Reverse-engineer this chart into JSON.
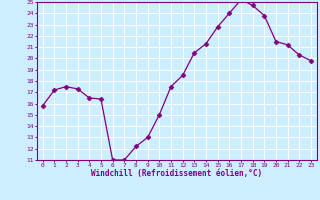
{
  "x": [
    0,
    1,
    2,
    3,
    4,
    5,
    6,
    7,
    8,
    9,
    10,
    11,
    12,
    13,
    14,
    15,
    16,
    17,
    18,
    19,
    20,
    21,
    22,
    23
  ],
  "y": [
    15.8,
    17.2,
    17.5,
    17.3,
    16.5,
    16.4,
    11.0,
    11.0,
    12.2,
    13.0,
    15.0,
    17.5,
    18.5,
    20.5,
    21.3,
    22.8,
    24.0,
    25.2,
    24.7,
    23.8,
    21.5,
    21.2,
    20.3,
    19.8
  ],
  "line_color": "#800080",
  "marker": "D",
  "marker_size": 2.5,
  "bg_color": "#cceeff",
  "grid_color": "#ffffff",
  "xlabel": "Windchill (Refroidissement éolien,°C)",
  "xlabel_color": "#800080",
  "tick_color": "#800080",
  "spine_color": "#800080",
  "ylim": [
    11,
    25
  ],
  "xlim": [
    -0.5,
    23.5
  ],
  "yticks": [
    11,
    12,
    13,
    14,
    15,
    16,
    17,
    18,
    19,
    20,
    21,
    22,
    23,
    24,
    25
  ],
  "xticks": [
    0,
    1,
    2,
    3,
    4,
    5,
    6,
    7,
    8,
    9,
    10,
    11,
    12,
    13,
    14,
    15,
    16,
    17,
    18,
    19,
    20,
    21,
    22,
    23
  ]
}
